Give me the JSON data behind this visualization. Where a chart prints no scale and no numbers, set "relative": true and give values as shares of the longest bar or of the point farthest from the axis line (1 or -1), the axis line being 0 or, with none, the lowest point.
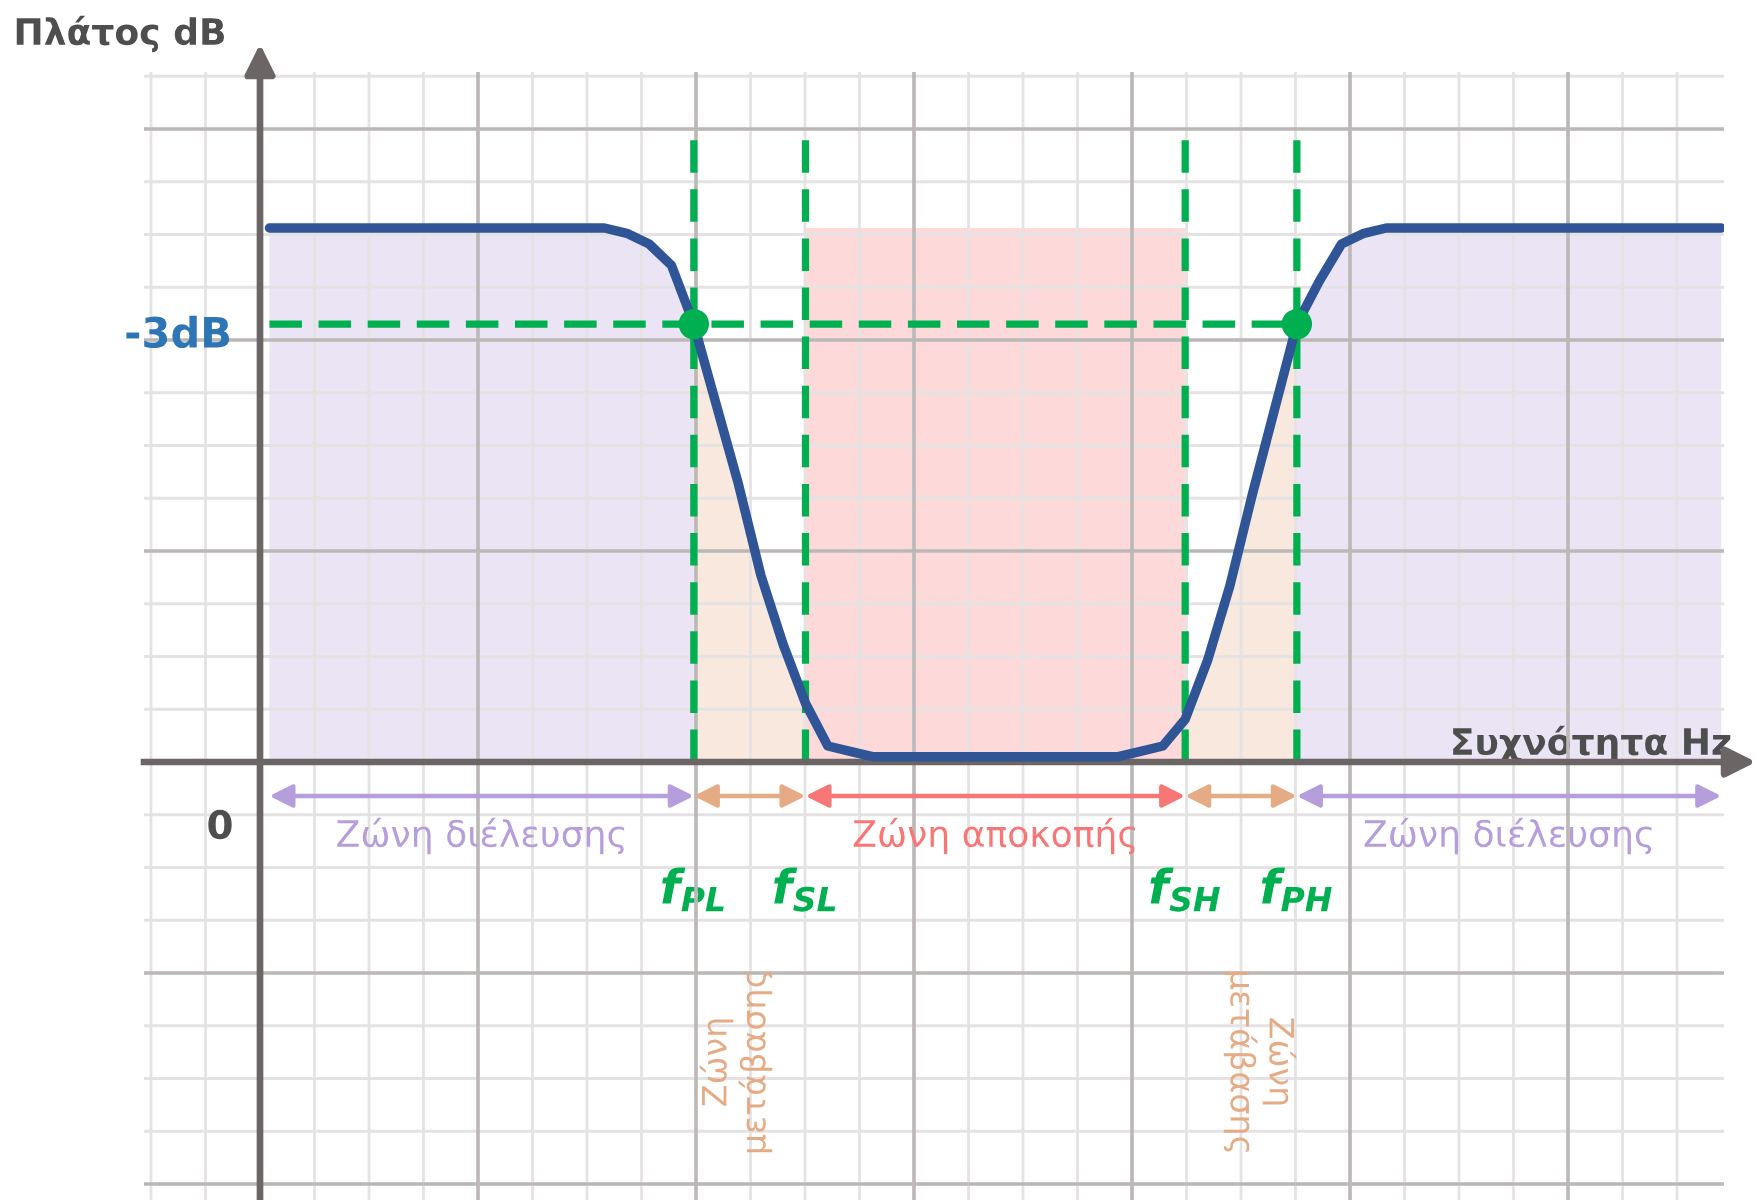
{
  "chart_data": {
    "type": "line",
    "xlabel": "Συχνότητα Hz",
    "ylabel": "Πλάτος dB",
    "relative": true,
    "grid": true,
    "categories": [
      null,
      null,
      null,
      null,
      null,
      null,
      null,
      null,
      null,
      null,
      null,
      null,
      null,
      null,
      null,
      null,
      null,
      null,
      null,
      "f$_{PL}$",
      null,
      null,
      null,
      null,
      "f$_{SL}$",
      null,
      null,
      null,
      null,
      null,
      null,
      null,
      null,
      null,
      null,
      null,
      null,
      null,
      null,
      null,
      null,
      "f$_{SH}$",
      null,
      null,
      null,
      null,
      "f$_{PH}$",
      null,
      null,
      null,
      null,
      null,
      null,
      null,
      null,
      null,
      null,
      null,
      null,
      null,
      null,
      null,
      null,
      null,
      null,
      null
    ],
    "series": [
      {
        "type": "area",
        "name": "Ζώνη διέλευσης",
        "color": "#b59edb",
        "values": [
          1,
          1,
          1,
          1,
          1,
          1,
          1,
          1,
          1,
          1,
          1,
          1,
          1,
          1,
          1,
          1,
          0.99,
          0.97,
          0.93,
          0.82,
          null,
          null,
          null,
          null,
          null,
          null,
          null,
          null,
          null,
          null,
          null,
          null,
          null,
          null,
          null,
          null,
          null,
          null,
          null,
          null,
          null,
          null,
          null,
          null,
          null,
          null,
          null,
          null,
          null,
          null,
          null,
          null,
          null,
          null,
          null,
          null,
          null,
          null,
          null,
          null,
          null,
          null,
          null,
          null,
          null,
          null
        ]
      },
      {
        "type": "area",
        "color": "#e5ab84",
        "values": [
          null,
          null,
          null,
          null,
          null,
          null,
          null,
          null,
          null,
          null,
          null,
          null,
          null,
          null,
          null,
          null,
          null,
          null,
          null,
          0.82,
          0.67,
          0.52,
          0.35,
          0.22,
          0.11,
          null,
          null,
          null,
          null,
          null,
          null,
          null,
          null,
          null,
          null,
          null,
          null,
          null,
          null,
          null,
          null,
          null,
          null,
          null,
          null,
          null,
          null,
          null,
          null,
          null,
          null,
          null,
          null,
          null,
          null,
          null,
          null,
          null,
          null,
          null,
          null,
          null,
          null,
          null,
          null,
          null
        ]
      },
      {
        "type": "area",
        "name": "Ζώνη αποκοπής",
        "color": "#f77777",
        "values": [
          null,
          null,
          null,
          null,
          null,
          null,
          null,
          null,
          null,
          null,
          null,
          null,
          null,
          null,
          null,
          null,
          null,
          null,
          null,
          null,
          null,
          null,
          null,
          null,
          1,
          1,
          1,
          1,
          1,
          1,
          1,
          1,
          1,
          1,
          1,
          1,
          1,
          1,
          1,
          1,
          1,
          1,
          null,
          null,
          null,
          null,
          null,
          null,
          null,
          null,
          null,
          null,
          null,
          null,
          null,
          null,
          null,
          null,
          null,
          null,
          null,
          null,
          null,
          null,
          null,
          null
        ]
      },
      {
        "type": "area",
        "color": "#e5ab84",
        "values": [
          null,
          null,
          null,
          null,
          null,
          null,
          null,
          null,
          null,
          null,
          null,
          null,
          null,
          null,
          null,
          null,
          null,
          null,
          null,
          null,
          null,
          null,
          null,
          null,
          null,
          null,
          null,
          null,
          null,
          null,
          null,
          null,
          null,
          null,
          null,
          null,
          null,
          null,
          null,
          null,
          null,
          0.08,
          0.19,
          0.33,
          0.5,
          0.66,
          0.82,
          null,
          null,
          null,
          null,
          null,
          null,
          null,
          null,
          null,
          null,
          null,
          null,
          null,
          null,
          null,
          null,
          null,
          null,
          null
        ]
      },
      {
        "type": "area",
        "name": "Ζώνη διέλευσης",
        "color": "#b59edb",
        "values": [
          null,
          null,
          null,
          null,
          null,
          null,
          null,
          null,
          null,
          null,
          null,
          null,
          null,
          null,
          null,
          null,
          null,
          null,
          null,
          null,
          null,
          null,
          null,
          null,
          null,
          null,
          null,
          null,
          null,
          null,
          null,
          null,
          null,
          null,
          null,
          null,
          null,
          null,
          null,
          null,
          null,
          null,
          null,
          null,
          null,
          null,
          0.82,
          0.9,
          0.97,
          0.99,
          1,
          1,
          1,
          1,
          1,
          1,
          1,
          1,
          1,
          1,
          1,
          1,
          1,
          1,
          1,
          1
        ]
      },
      {
        "color": "#2f5597",
        "values": [
          1,
          1,
          1,
          1,
          1,
          1,
          1,
          1,
          1,
          1,
          1,
          1,
          1,
          1,
          1,
          1,
          0.99,
          0.97,
          0.93,
          0.82,
          0.67,
          0.52,
          0.35,
          0.22,
          0.11,
          0.03,
          0.02,
          0.01,
          0.01,
          0.01,
          0.01,
          0.01,
          0.01,
          0.01,
          0.01,
          0.01,
          0.01,
          0.01,
          0.01,
          0.02,
          0.03,
          0.08,
          0.19,
          0.33,
          0.5,
          0.66,
          0.82,
          0.9,
          0.97,
          0.99,
          1,
          1,
          1,
          1,
          1,
          1,
          1,
          1,
          1,
          1,
          1,
          1,
          1,
          1,
          1,
          1
        ]
      },
      {
        "type": "line",
        "color": "#00b050",
        "line_style": "dashed",
        "values": [
          0.82,
          0.82,
          0.82,
          0.82,
          0.82,
          0.82,
          0.82,
          0.82,
          0.82,
          0.82,
          0.82,
          0.82,
          0.82,
          0.82,
          0.82,
          0.82,
          0.82,
          0.82,
          0.82,
          0.82,
          0.82,
          0.82,
          0.82,
          0.82,
          0.82,
          0.82,
          0.82,
          0.82,
          0.82,
          0.82,
          0.82,
          0.82,
          0.82,
          0.82,
          0.82,
          0.82,
          0.82,
          0.82,
          0.82,
          0.82,
          0.82,
          0.82,
          0.82,
          0.82,
          0.82,
          0.82,
          0.82,
          null,
          null,
          null,
          null,
          null,
          null,
          null,
          null,
          null,
          null,
          null,
          null,
          null,
          null,
          null,
          null,
          null,
          null,
          null
        ]
      },
      {
        "type": "scatter",
        "color": "#00b050",
        "marker": "circle",
        "values": [
          null,
          null,
          null,
          null,
          null,
          null,
          null,
          null,
          null,
          null,
          null,
          null,
          null,
          null,
          null,
          null,
          null,
          null,
          null,
          0.82,
          null,
          null,
          null,
          null,
          null,
          null,
          null,
          null,
          null,
          null,
          null,
          null,
          null,
          null,
          null,
          null,
          null,
          null,
          null,
          null,
          null,
          null,
          null,
          null,
          null,
          null,
          0.82,
          null,
          null,
          null,
          null,
          null,
          null,
          null,
          null,
          null,
          null,
          null,
          null,
          null,
          null,
          null,
          null,
          null,
          null,
          null
        ]
      }
    ],
    "ref_lines": [
      {
        "axis": "x",
        "value": "f$_{PL}$",
        "color": "#00b050",
        "line_style": "dashed"
      },
      {
        "axis": "x",
        "value": "f$_{SL}$",
        "color": "#00b050",
        "line_style": "dashed"
      },
      {
        "axis": "x",
        "value": "f$_{SH}$",
        "color": "#00b050",
        "line_style": "dashed"
      },
      {
        "axis": "x",
        "value": "f$_{PH}$",
        "color": "#00b050",
        "line_style": "dashed"
      }
    ],
    "annotations": [
      "0",
      "-3dB",
      "Ζώνη\nμετάβασης",
      "Ζώνη\nμετάβασης"
    ]
  }
}
